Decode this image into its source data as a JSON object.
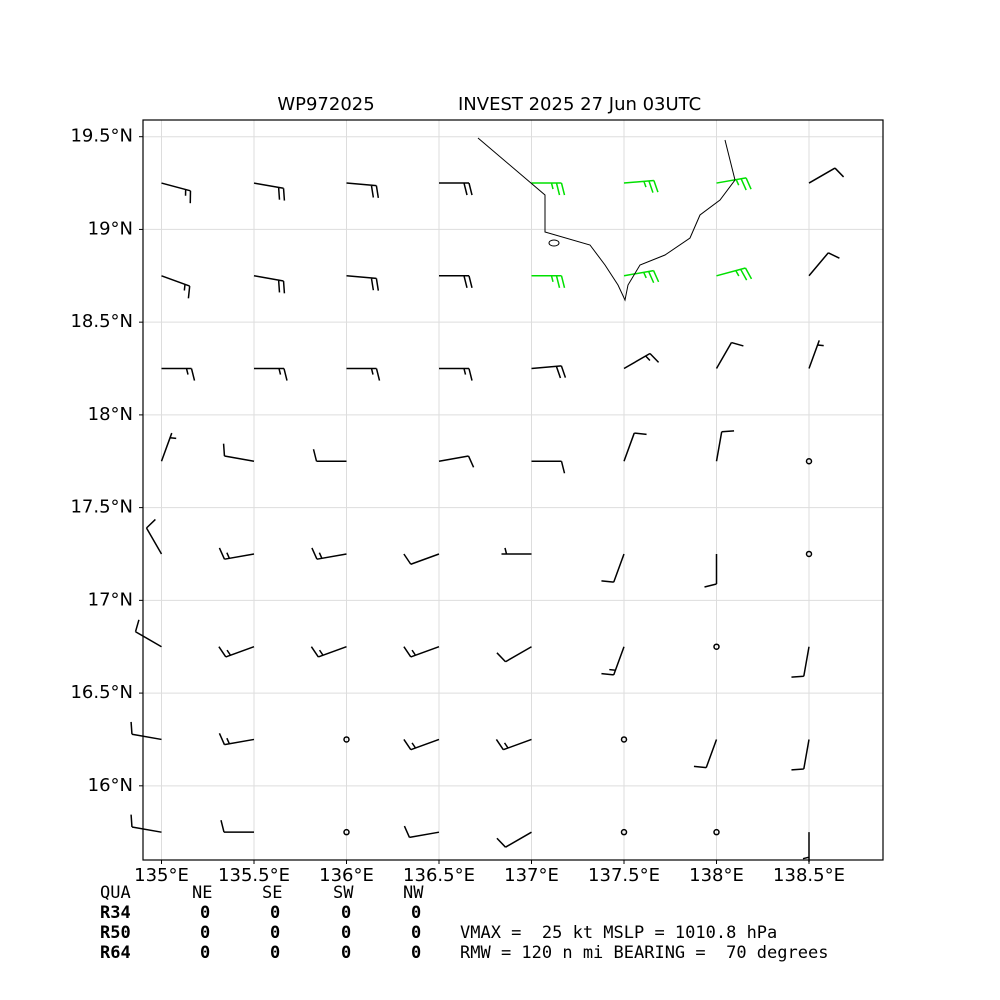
{
  "chart_data": {
    "type": "barbs",
    "title": "WP972025",
    "subtitle": "INVEST 2025 27 Jun 03UTC",
    "xlim": [
      134.9,
      138.9
    ],
    "ylim": [
      15.6,
      19.59
    ],
    "xticks": [
      {
        "value": 135,
        "label": "135°E"
      },
      {
        "value": 135.5,
        "label": "135.5°E"
      },
      {
        "value": 136,
        "label": "136°E"
      },
      {
        "value": 136.5,
        "label": "136.5°E"
      },
      {
        "value": 137,
        "label": "137°E"
      },
      {
        "value": 137.5,
        "label": "137.5°E"
      },
      {
        "value": 138,
        "label": "138°E"
      },
      {
        "value": 138.5,
        "label": "138.5°E"
      }
    ],
    "yticks": [
      {
        "value": 16,
        "label": "16°N"
      },
      {
        "value": 16.5,
        "label": "16.5°N"
      },
      {
        "value": 17,
        "label": "17°N"
      },
      {
        "value": 17.5,
        "label": "17.5°N"
      },
      {
        "value": 18,
        "label": "18°N"
      },
      {
        "value": 18.5,
        "label": "18.5°N"
      },
      {
        "value": 19,
        "label": "19°N"
      },
      {
        "value": 19.5,
        "label": "19.5°N"
      }
    ],
    "grid": true,
    "series": [
      {
        "color": "#000000",
        "lon": [
          135,
          135.5,
          136,
          136.5,
          138.5,
          135,
          135.5,
          136,
          136.5,
          138.5,
          135,
          135.5,
          136,
          136.5,
          137,
          137.5,
          138,
          138.5,
          135,
          135.5,
          136,
          136.5,
          137,
          137.5,
          138,
          138.5,
          135,
          135.5,
          136,
          136.5,
          137,
          137.5,
          138,
          138.5,
          135,
          135.5,
          136,
          136.5,
          137,
          137.5,
          138,
          138.5,
          135,
          135.5,
          136,
          136.5,
          137,
          137.5,
          138,
          138.5,
          135,
          135.5,
          136,
          136.5,
          137,
          137.5,
          138,
          138.5
        ],
        "lat": [
          19.25,
          19.25,
          19.25,
          19.25,
          19.25,
          18.75,
          18.75,
          18.75,
          18.75,
          18.75,
          18.25,
          18.25,
          18.25,
          18.25,
          18.25,
          18.25,
          18.25,
          18.25,
          17.75,
          17.75,
          17.75,
          17.75,
          17.75,
          17.75,
          17.75,
          17.75,
          17.25,
          17.25,
          17.25,
          17.25,
          17.25,
          17.25,
          17.25,
          17.25,
          16.75,
          16.75,
          16.75,
          16.75,
          16.75,
          16.75,
          16.75,
          16.75,
          16.25,
          16.25,
          16.25,
          16.25,
          16.25,
          16.25,
          16.25,
          16.25,
          15.75,
          15.75,
          15.75,
          15.75,
          15.75,
          15.75,
          15.75,
          15.75
        ],
        "direction": [
          105,
          100,
          95,
          90,
          60,
          110,
          100,
          95,
          90,
          40,
          90,
          90,
          90,
          90,
          85,
          60,
          30,
          20,
          20,
          280,
          270,
          80,
          90,
          20,
          10,
          0,
          330,
          260,
          260,
          250,
          270,
          200,
          180,
          0,
          300,
          250,
          250,
          250,
          240,
          200,
          0,
          190,
          280,
          260,
          0,
          250,
          250,
          0,
          200,
          190,
          280,
          270,
          0,
          260,
          240,
          0,
          0,
          180
        ],
        "speed": [
          15,
          20,
          20,
          20,
          10,
          15,
          20,
          20,
          20,
          10,
          15,
          15,
          15,
          15,
          20,
          15,
          10,
          5,
          5,
          10,
          10,
          10,
          10,
          10,
          10,
          0,
          10,
          15,
          15,
          10,
          5,
          10,
          10,
          0,
          10,
          15,
          15,
          15,
          10,
          15,
          0,
          10,
          10,
          15,
          0,
          15,
          15,
          0,
          10,
          10,
          10,
          10,
          0,
          10,
          10,
          0,
          0,
          5
        ]
      },
      {
        "color": "#00e000",
        "lon": [
          137,
          137.5,
          138,
          137,
          137.5,
          138
        ],
        "lat": [
          19.25,
          19.25,
          19.25,
          18.75,
          18.75,
          18.75
        ],
        "direction": [
          90,
          85,
          80,
          90,
          80,
          75
        ],
        "speed": [
          25,
          25,
          25,
          25,
          25,
          25
        ]
      }
    ]
  },
  "table": {
    "header": [
      "QUA",
      "NE",
      "SE",
      "SW",
      "NW"
    ],
    "rows": [
      [
        "R34",
        0,
        0,
        0,
        0
      ],
      [
        "R50",
        0,
        0,
        0,
        0
      ],
      [
        "R64",
        0,
        0,
        0,
        0
      ]
    ]
  },
  "info": [
    "VMAX =  25 kt MSLP = 1010.8 hPa",
    "RMW = 120 n mi BEARING =  70 degrees"
  ]
}
